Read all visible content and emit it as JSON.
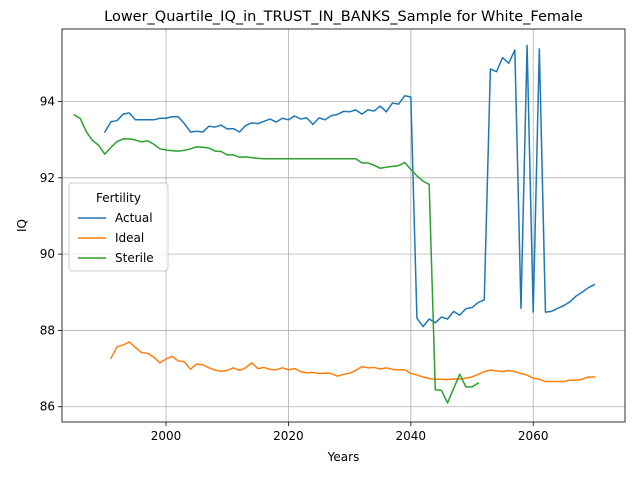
{
  "chart_data": {
    "type": "line",
    "title": "Lower_Quartile_IQ_in_TRUST_IN_BANKS_Sample for White_Female",
    "xlabel": "Years",
    "ylabel": "IQ",
    "xlim": [
      1983,
      2075
    ],
    "ylim": [
      85.6,
      95.9
    ],
    "xticks": [
      2000,
      2020,
      2040,
      2060
    ],
    "yticks": [
      86,
      88,
      90,
      92,
      94
    ],
    "grid": true,
    "legend": {
      "title": "Fertility",
      "placement": "center-left"
    },
    "series": [
      {
        "name": "Actual",
        "color": "#1f77b4",
        "x": [
          1990,
          1991,
          1992,
          1993,
          1994,
          1995,
          1996,
          1997,
          1998,
          1999,
          2000,
          2001,
          2002,
          2003,
          2004,
          2005,
          2006,
          2007,
          2008,
          2009,
          2010,
          2011,
          2012,
          2013,
          2014,
          2015,
          2016,
          2017,
          2018,
          2019,
          2020,
          2021,
          2022,
          2023,
          2024,
          2025,
          2026,
          2027,
          2028,
          2029,
          2030,
          2031,
          2032,
          2033,
          2034,
          2035,
          2036,
          2037,
          2038,
          2039,
          2040,
          2041,
          2042,
          2043,
          2044,
          2045,
          2046,
          2047,
          2048,
          2049,
          2050,
          2051,
          2052,
          2053,
          2054,
          2055,
          2056,
          2057,
          2058,
          2059,
          2060,
          2061,
          2062,
          2063,
          2064,
          2065,
          2066,
          2067,
          2068,
          2069,
          2070
        ],
        "y": [
          93.2,
          93.47,
          93.5,
          93.67,
          93.7,
          93.52,
          93.52,
          93.52,
          93.52,
          93.56,
          93.56,
          93.6,
          93.6,
          93.42,
          93.2,
          93.22,
          93.2,
          93.35,
          93.33,
          93.38,
          93.28,
          93.29,
          93.2,
          93.37,
          93.44,
          93.42,
          93.48,
          93.54,
          93.46,
          93.56,
          93.52,
          93.62,
          93.54,
          93.57,
          93.4,
          93.57,
          93.52,
          93.63,
          93.66,
          93.74,
          93.73,
          93.78,
          93.67,
          93.78,
          93.75,
          93.88,
          93.73,
          93.96,
          93.93,
          94.15,
          94.12,
          88.32,
          88.1,
          88.3,
          88.2,
          88.35,
          88.3,
          88.5,
          88.4,
          88.57,
          88.6,
          88.73,
          88.8,
          94.85,
          94.78,
          95.15,
          95.0,
          95.35,
          88.58,
          95.47,
          88.48,
          95.38,
          88.48,
          88.5,
          88.58,
          88.65,
          88.75,
          88.9,
          89.0,
          89.12,
          89.2
        ]
      },
      {
        "name": "Ideal",
        "color": "#ff7f0e",
        "x": [
          1991,
          1992,
          1993,
          1994,
          1995,
          1996,
          1997,
          1998,
          1999,
          2000,
          2001,
          2002,
          2003,
          2004,
          2005,
          2006,
          2007,
          2008,
          2009,
          2010,
          2011,
          2012,
          2013,
          2014,
          2015,
          2016,
          2017,
          2018,
          2019,
          2020,
          2021,
          2022,
          2023,
          2024,
          2025,
          2026,
          2027,
          2028,
          2029,
          2030,
          2031,
          2032,
          2033,
          2034,
          2035,
          2036,
          2037,
          2038,
          2039,
          2040,
          2041,
          2042,
          2043,
          2044,
          2045,
          2046,
          2047,
          2048,
          2049,
          2050,
          2051,
          2052,
          2053,
          2054,
          2055,
          2056,
          2057,
          2058,
          2059,
          2060,
          2061,
          2062,
          2063,
          2064,
          2065,
          2066,
          2067,
          2068,
          2069,
          2070
        ],
        "y": [
          87.27,
          87.57,
          87.62,
          87.7,
          87.55,
          87.42,
          87.4,
          87.3,
          87.15,
          87.25,
          87.32,
          87.2,
          87.18,
          86.98,
          87.12,
          87.1,
          87.02,
          86.96,
          86.93,
          86.95,
          87.02,
          86.95,
          87.02,
          87.15,
          87.0,
          87.03,
          86.98,
          86.97,
          87.02,
          86.97,
          87.0,
          86.92,
          86.89,
          86.9,
          86.87,
          86.88,
          86.87,
          86.8,
          86.85,
          86.88,
          86.95,
          87.05,
          87.02,
          87.03,
          86.99,
          87.02,
          86.98,
          86.97,
          86.97,
          86.87,
          86.83,
          86.78,
          86.74,
          86.72,
          86.72,
          86.71,
          86.73,
          86.72,
          86.75,
          86.78,
          86.85,
          86.92,
          86.96,
          86.94,
          86.92,
          86.95,
          86.92,
          86.87,
          86.83,
          86.75,
          86.72,
          86.66,
          86.66,
          86.66,
          86.66,
          86.7,
          86.69,
          86.72,
          86.78,
          86.78
        ]
      },
      {
        "name": "Sterile",
        "color": "#2ca02c",
        "x": [
          1985,
          1986,
          1987,
          1988,
          1989,
          1990,
          1991,
          1992,
          1993,
          1994,
          1995,
          1996,
          1997,
          1998,
          1999,
          2000,
          2001,
          2002,
          2003,
          2004,
          2005,
          2006,
          2007,
          2008,
          2009,
          2010,
          2011,
          2012,
          2013,
          2014,
          2015,
          2016,
          2017,
          2018,
          2019,
          2020,
          2021,
          2022,
          2023,
          2024,
          2025,
          2026,
          2027,
          2028,
          2029,
          2030,
          2031,
          2032,
          2033,
          2034,
          2035,
          2036,
          2037,
          2038,
          2039,
          2040,
          2041,
          2042,
          2043,
          2044,
          2045,
          2046,
          2047,
          2048,
          2049,
          2050,
          2051
        ],
        "y": [
          93.65,
          93.55,
          93.2,
          92.98,
          92.85,
          92.62,
          92.8,
          92.95,
          93.02,
          93.02,
          92.99,
          92.94,
          92.97,
          92.88,
          92.76,
          92.73,
          92.71,
          92.7,
          92.72,
          92.76,
          92.81,
          92.8,
          92.78,
          92.7,
          92.69,
          92.6,
          92.6,
          92.54,
          92.55,
          92.53,
          92.51,
          92.5,
          92.5,
          92.5,
          92.5,
          92.5,
          92.5,
          92.5,
          92.5,
          92.5,
          92.5,
          92.5,
          92.5,
          92.5,
          92.5,
          92.5,
          92.5,
          92.39,
          92.39,
          92.33,
          92.25,
          92.28,
          92.3,
          92.32,
          92.4,
          92.22,
          92.05,
          91.91,
          91.83,
          86.45,
          86.43,
          86.1,
          86.48,
          86.85,
          86.52,
          86.52,
          86.62
        ]
      }
    ]
  }
}
